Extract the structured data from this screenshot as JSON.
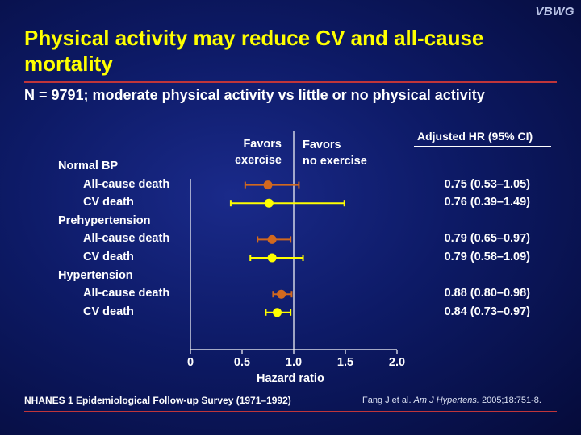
{
  "brand": "VBWG",
  "title": "Physical activity may reduce CV and all-cause mortality",
  "subtitle": "N = 9791; moderate physical activity vs little or no physical activity",
  "favors_left": [
    "Favors",
    "exercise"
  ],
  "favors_right": [
    "Favors",
    "no exercise"
  ],
  "hr_header": "Adjusted HR (95% CI)",
  "footer_left": "NHANES 1 Epidemiological Follow-up Survey (1971–1992)",
  "footer_right": {
    "prefix": "Fang J et al. ",
    "journal": "Am J Hypertens.",
    "suffix": " 2005;18:751-8."
  },
  "colors": {
    "title": "#ffff00",
    "all_cause": "#d2691e",
    "cv": "#ffff00",
    "rule": "#c0353a"
  },
  "chart_data": {
    "type": "forest",
    "xlabel": "Hazard ratio",
    "xlim": [
      0,
      2.0
    ],
    "xticks": [
      "0",
      "0.5",
      "1.0",
      "1.5",
      "2.0"
    ],
    "xtick_values": [
      0,
      0.5,
      1.0,
      1.5,
      2.0
    ],
    "reference_line": 1.0,
    "rows": [
      {
        "kind": "group",
        "label": "Normal BP"
      },
      {
        "kind": "item",
        "label": "All-cause death",
        "series": "all_cause",
        "hr": 0.75,
        "lo": 0.53,
        "hi": 1.05,
        "text": "0.75 (0.53–1.05)"
      },
      {
        "kind": "item",
        "label": "CV death",
        "series": "cv",
        "hr": 0.76,
        "lo": 0.39,
        "hi": 1.49,
        "text": "0.76 (0.39–1.49)"
      },
      {
        "kind": "group",
        "label": "Prehypertension"
      },
      {
        "kind": "item",
        "label": "All-cause death",
        "series": "all_cause",
        "hr": 0.79,
        "lo": 0.65,
        "hi": 0.97,
        "text": "0.79 (0.65–0.97)"
      },
      {
        "kind": "item",
        "label": "CV death",
        "series": "cv",
        "hr": 0.79,
        "lo": 0.58,
        "hi": 1.09,
        "text": "0.79 (0.58–1.09)"
      },
      {
        "kind": "group",
        "label": "Hypertension"
      },
      {
        "kind": "item",
        "label": "All-cause death",
        "series": "all_cause",
        "hr": 0.88,
        "lo": 0.8,
        "hi": 0.98,
        "text": "0.88 (0.80–0.98)"
      },
      {
        "kind": "item",
        "label": "CV death",
        "series": "cv",
        "hr": 0.84,
        "lo": 0.73,
        "hi": 0.97,
        "text": "0.84 (0.73–0.97)"
      }
    ]
  }
}
